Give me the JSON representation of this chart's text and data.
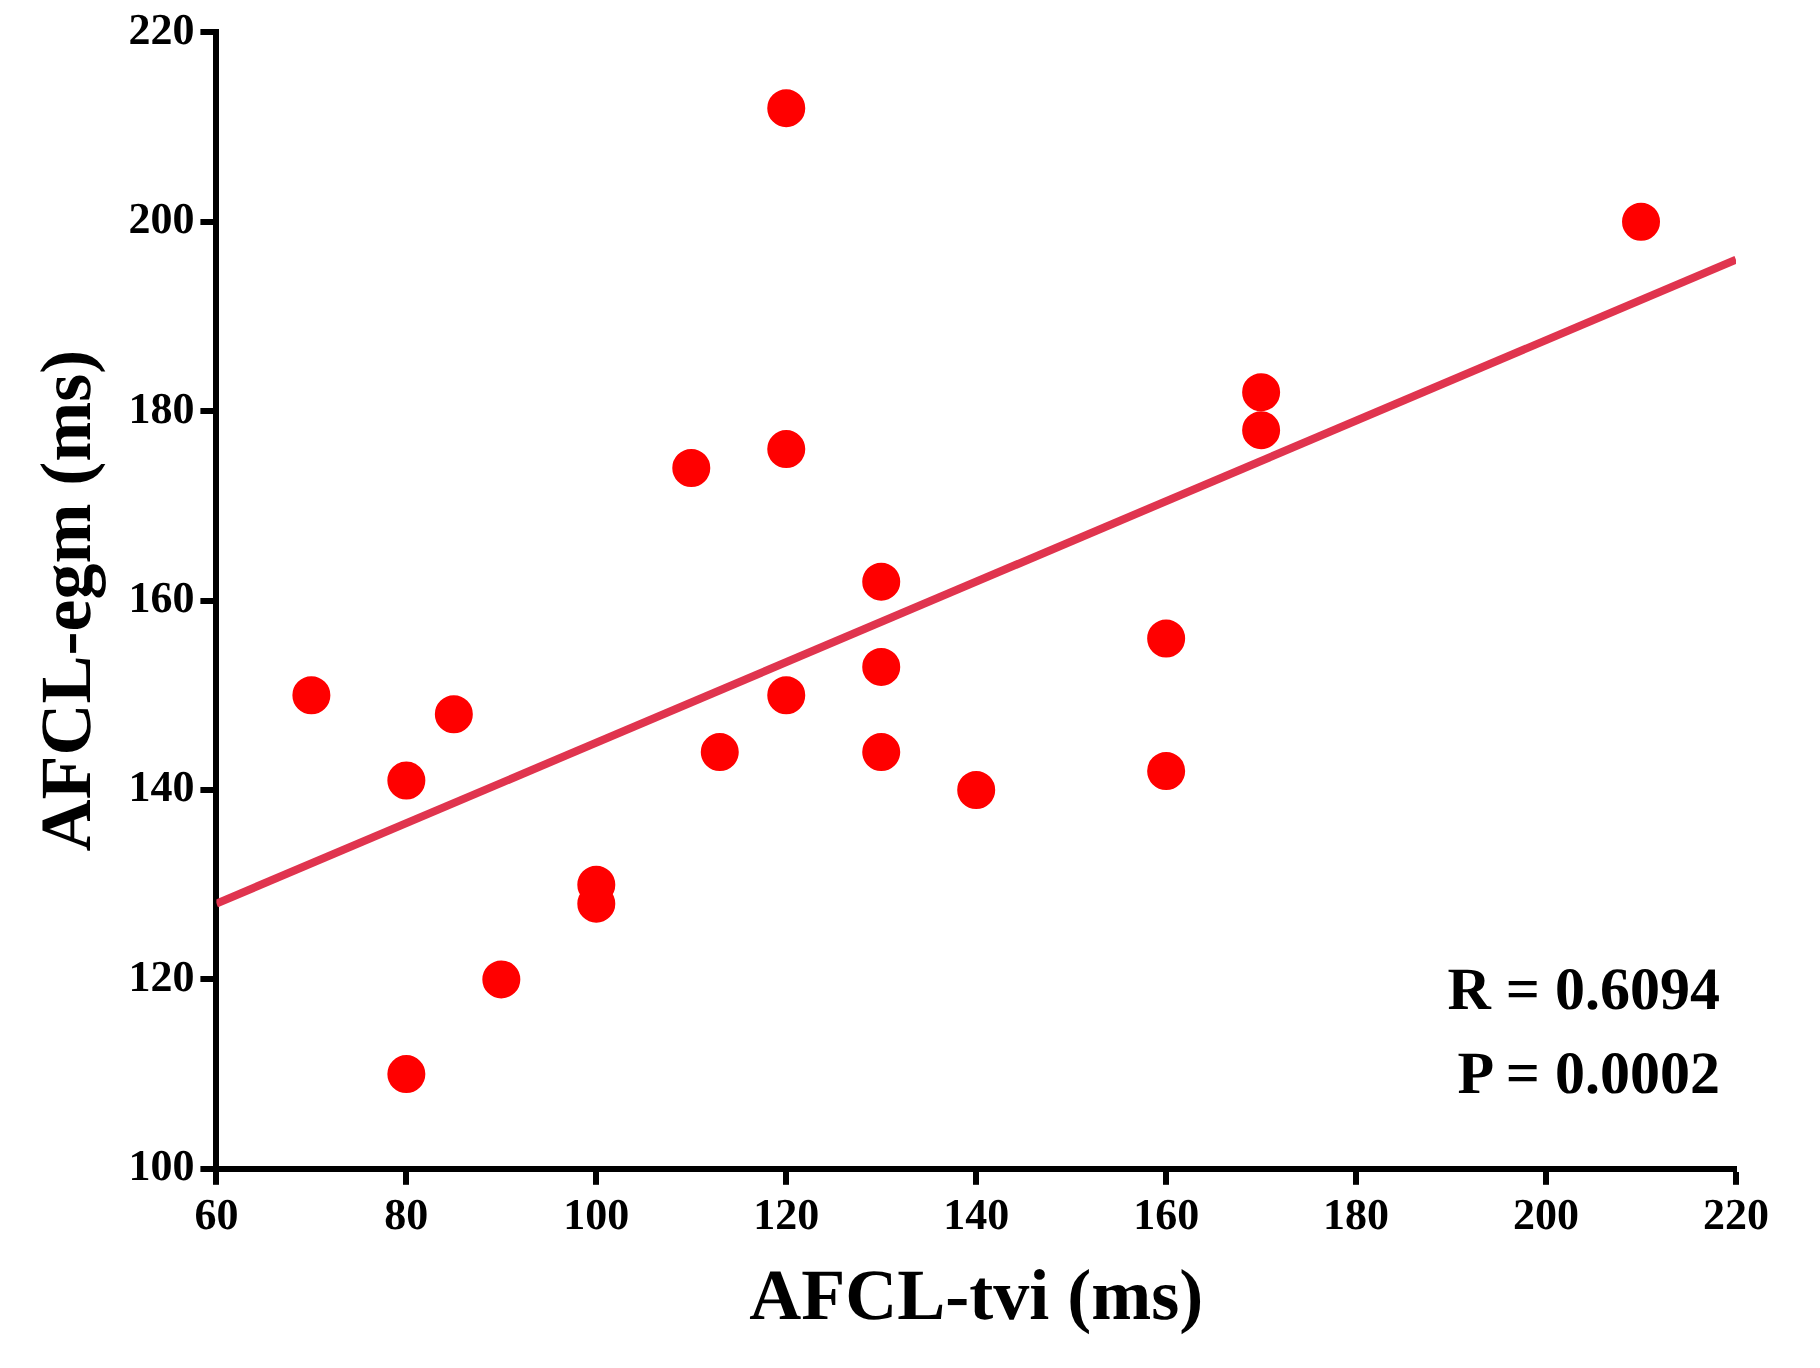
{
  "chart_data": {
    "type": "scatter",
    "xlabel": "AFCL-tvi (ms)",
    "ylabel": "AFCL-egm (ms)",
    "xlim": [
      60,
      220
    ],
    "xticks": [
      60,
      80,
      100,
      120,
      140,
      160,
      180,
      200,
      220
    ],
    "ylim": [
      100,
      220
    ],
    "yticks": [
      100,
      120,
      140,
      160,
      180,
      200,
      220
    ],
    "grid": false,
    "legend": false,
    "series": [
      {
        "color": "#ff0000",
        "marker": "circle",
        "x": [
          70,
          80,
          85,
          90,
          80,
          100,
          100,
          113,
          120,
          130,
          130,
          130,
          120,
          210,
          170,
          170,
          110,
          120,
          160,
          160,
          140
        ],
        "values": [
          150,
          141,
          148,
          120,
          110,
          130,
          128,
          144,
          150,
          144,
          153,
          162,
          212,
          200,
          182,
          178,
          174,
          176,
          156,
          142,
          140
        ]
      },
      {
        "type": "line",
        "marker": "none",
        "color": "#e0344e",
        "x": [
          60,
          220
        ],
        "values": [
          128,
          196
        ]
      }
    ],
    "annotations": [
      "R = 0.6094",
      "P = 0.0002"
    ]
  }
}
